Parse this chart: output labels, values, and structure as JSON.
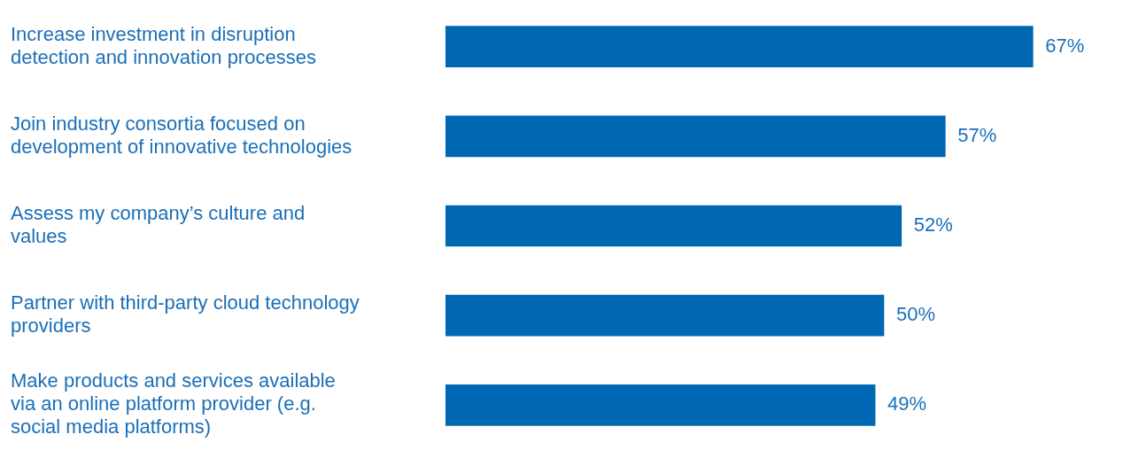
{
  "chart_data": {
    "type": "bar",
    "orientation": "horizontal",
    "categories": [
      "Increase investment in disruption detection and innovation processes",
      "Join industry consortia focused on development of innovative technologies",
      "Assess my company’s culture and values",
      "Partner with third-party cloud technology providers",
      "Make products and services available via an online platform provider (e.g. social media platforms)"
    ],
    "values": [
      67,
      57,
      52,
      50,
      49
    ],
    "value_labels": [
      "67%",
      "57%",
      "52%",
      "50%",
      "49%"
    ],
    "color": "#0068b3",
    "legend": false
  }
}
